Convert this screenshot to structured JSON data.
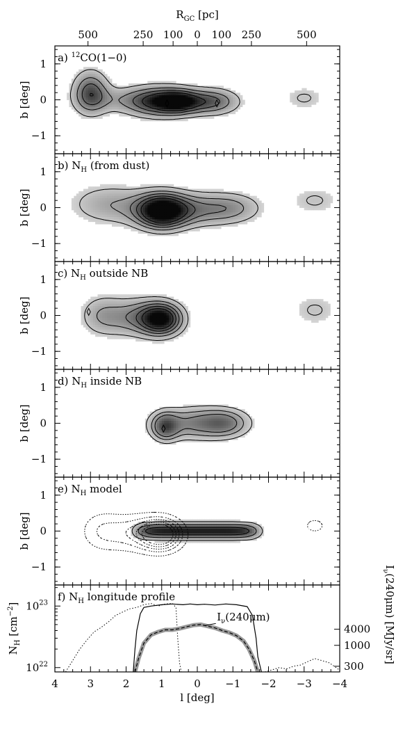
{
  "chart_data": {
    "type": "heatmap",
    "top_axis": {
      "label_main": "R",
      "label_sub": "GC",
      "label_unit": " [pc]",
      "ticks": [
        {
          "l": 3.07,
          "label": "500"
        },
        {
          "l": 1.52,
          "label": "250"
        },
        {
          "l": 0.68,
          "label": "100"
        },
        {
          "l": 0.0,
          "label": "0"
        },
        {
          "l": -0.68,
          "label": "100"
        },
        {
          "l": -1.52,
          "label": "250"
        },
        {
          "l": -3.07,
          "label": "500"
        }
      ]
    },
    "x_axis": {
      "label": "l [deg]",
      "range": [
        4,
        -4
      ],
      "ticks": [
        {
          "v": 4,
          "label": "4"
        },
        {
          "v": 3,
          "label": "3"
        },
        {
          "v": 2,
          "label": "2"
        },
        {
          "v": 1,
          "label": "1"
        },
        {
          "v": 0,
          "label": "0"
        },
        {
          "v": -1,
          "label": "−1"
        },
        {
          "v": -2,
          "label": "−2"
        },
        {
          "v": -3,
          "label": "−3"
        },
        {
          "v": -4,
          "label": "−4"
        }
      ]
    },
    "y_axis_label": "b [deg]",
    "b_range": [
      -1.5,
      1.5
    ],
    "b_ticks": [
      {
        "v": 1,
        "label": "1"
      },
      {
        "v": 0,
        "label": "0"
      },
      {
        "v": -1,
        "label": "−1"
      }
    ],
    "panels": [
      {
        "letter": "a)",
        "title_pre": "",
        "title_sup": "12",
        "title_main": "CO(1−0)",
        "title_sub": "",
        "title_post": "",
        "blobs": [
          {
            "l": 3.0,
            "b": 0.2,
            "wl": 0.45,
            "wb": 0.55,
            "amp": 0.7
          },
          {
            "l": 1.1,
            "b": -0.05,
            "wl": 0.8,
            "wb": 0.38,
            "amp": 0.85
          },
          {
            "l": 0.5,
            "b": -0.05,
            "wl": 0.55,
            "wb": 0.3,
            "amp": 0.8
          },
          {
            "l": -0.4,
            "b": -0.05,
            "wl": 0.7,
            "wb": 0.33,
            "amp": 0.65
          },
          {
            "l": 2.2,
            "b": 0.0,
            "wl": 1.0,
            "wb": 0.35,
            "amp": 0.25
          },
          {
            "l": -3.0,
            "b": 0.05,
            "wl": 0.6,
            "wb": 0.35,
            "amp": 0.2
          }
        ],
        "levels": [
          0.18,
          0.4,
          0.6,
          0.8
        ],
        "dotted": false,
        "peaks": [
          {
            "l": 0.85,
            "b": -0.1
          },
          {
            "l": -0.55,
            "b": -0.1
          }
        ]
      },
      {
        "letter": "b)",
        "title_pre": "",
        "title_sup": "",
        "title_main": "N",
        "title_sub": "H",
        "title_post": " (from dust)",
        "blobs": [
          {
            "l": 1.0,
            "b": -0.1,
            "wl": 0.65,
            "wb": 0.45,
            "amp": 1.0
          },
          {
            "l": 0.3,
            "b": -0.05,
            "wl": 1.4,
            "wb": 0.45,
            "amp": 0.5
          },
          {
            "l": 2.5,
            "b": 0.1,
            "wl": 1.1,
            "wb": 0.55,
            "amp": 0.3
          },
          {
            "l": -1.0,
            "b": 0.0,
            "wl": 0.8,
            "wb": 0.4,
            "amp": 0.25
          },
          {
            "l": -3.3,
            "b": 0.2,
            "wl": 0.7,
            "wb": 0.4,
            "amp": 0.2
          }
        ],
        "levels": [
          0.18,
          0.35,
          0.5,
          0.65,
          0.8
        ],
        "dotted": false,
        "peaks": []
      },
      {
        "letter": "c)",
        "title_pre": "",
        "title_sup": "",
        "title_main": "N",
        "title_sub": "H",
        "title_post": " outside NB",
        "blobs": [
          {
            "l": 1.0,
            "b": -0.1,
            "wl": 0.55,
            "wb": 0.42,
            "amp": 1.0
          },
          {
            "l": 1.7,
            "b": -0.05,
            "wl": 0.8,
            "wb": 0.5,
            "amp": 0.45
          },
          {
            "l": 2.7,
            "b": 0.0,
            "wl": 0.6,
            "wb": 0.55,
            "amp": 0.3
          },
          {
            "l": -3.3,
            "b": 0.15,
            "wl": 0.65,
            "wb": 0.45,
            "amp": 0.2
          }
        ],
        "levels": [
          0.18,
          0.35,
          0.5,
          0.65,
          0.8
        ],
        "dotted": false,
        "peaks": [
          {
            "l": 3.05,
            "b": 0.1
          }
        ]
      },
      {
        "letter": "d)",
        "title_pre": "",
        "title_sup": "",
        "title_main": "N",
        "title_sub": "H",
        "title_post": " inside NB",
        "blobs": [
          {
            "l": 0.9,
            "b": -0.1,
            "wl": 0.35,
            "wb": 0.35,
            "amp": 0.6
          },
          {
            "l": 0.0,
            "b": 0.0,
            "wl": 1.1,
            "wb": 0.42,
            "amp": 0.5
          },
          {
            "l": -0.8,
            "b": 0.0,
            "wl": 0.6,
            "wb": 0.35,
            "amp": 0.35
          }
        ],
        "levels": [
          0.15,
          0.3,
          0.45
        ],
        "dotted": false,
        "peaks": [
          {
            "l": 0.95,
            "b": -0.15
          }
        ]
      },
      {
        "letter": "e)",
        "title_pre": "",
        "title_sup": "",
        "title_main": "N",
        "title_sub": "H",
        "title_post": " model",
        "blobs": [
          {
            "l": 0.0,
            "b": 0.0,
            "wl": 1.75,
            "wb": 0.22,
            "amp": 1.0,
            "flat": true
          }
        ],
        "levels": [
          0.18,
          0.45,
          0.75
        ],
        "dotted": true,
        "dotted_blobs": [
          {
            "l": 1.0,
            "b": -0.1,
            "wl": 0.55,
            "wb": 0.42,
            "amp": 1.0
          },
          {
            "l": 1.7,
            "b": -0.05,
            "wl": 0.8,
            "wb": 0.5,
            "amp": 0.45
          },
          {
            "l": 2.7,
            "b": 0.0,
            "wl": 0.6,
            "wb": 0.55,
            "amp": 0.3
          },
          {
            "l": -3.3,
            "b": 0.15,
            "wl": 0.65,
            "wb": 0.45,
            "amp": 0.2
          }
        ],
        "dotted_levels": [
          0.18,
          0.35,
          0.5,
          0.65,
          0.8
        ],
        "peaks": []
      }
    ],
    "profile": {
      "letter": "f)",
      "title_main": "N",
      "title_sub": "H",
      "title_post": " longitude profile",
      "ylabel_main": "N",
      "ylabel_sub": "H",
      "ylabel_unit": " [cm",
      "ylabel_exp": "−2",
      "ylabel_close": "]",
      "yscale": "log",
      "yrange": [
        8.5e+21,
        2.2e+23
      ],
      "left_ticks": [
        {
          "v": 1e+22,
          "base": "10",
          "exp": "22"
        },
        {
          "v": 1e+23,
          "base": "10",
          "exp": "23"
        }
      ],
      "right_label_main": "I",
      "right_label_sub": "ν",
      "right_label_unit": "(240μm) [MJy/sr]",
      "right_ticks": [
        {
          "v": 4000,
          "pos": 4.2e+22,
          "label": "4000"
        },
        {
          "v": 1000,
          "pos": 2.3e+22,
          "label": "1000"
        },
        {
          "v": 300,
          "pos": 1.05e+22,
          "label": "300"
        }
      ],
      "annotation_main": "I",
      "annotation_sub": "ν",
      "annotation_post": "(240μm)",
      "model_profile": {
        "l": [
          1.8,
          1.75,
          1.7,
          1.6,
          1.5,
          1.3,
          1.0,
          0.7,
          0.4,
          0.2,
          0.0,
          -0.2,
          -0.5,
          -0.8,
          -1.1,
          -1.4,
          -1.55,
          -1.65,
          -1.7,
          -1.8
        ],
        "nh": [
          8.5e+21,
          2e+22,
          4e+22,
          7.5e+22,
          9.5e+22,
          1e+23,
          1.05e+23,
          1.08e+23,
          1.05e+23,
          1.08e+23,
          1.05e+23,
          1.07e+23,
          1.04e+23,
          1.08e+23,
          1.05e+23,
          9.8e+22,
          7e+22,
          3e+22,
          1.5e+22,
          8.5e+21
        ]
      },
      "dust_profile": {
        "l": [
          3.7,
          3.5,
          3.3,
          3.1,
          2.9,
          2.7,
          2.5,
          2.3,
          2.1,
          1.9,
          1.7,
          1.5,
          1.3,
          1.1,
          0.9,
          0.7,
          0.6,
          0.55,
          0.5,
          0.45,
          0.3,
          0.2
        ],
        "nh": [
          8.5e+21,
          1.3e+22,
          2e+22,
          2.8e+22,
          3.8e+22,
          4.5e+22,
          5.5e+22,
          7e+22,
          8e+22,
          9e+22,
          9.5e+22,
          1.05e+23,
          1.1e+23,
          1e+23,
          1.08e+23,
          1.1e+23,
          9.5e+22,
          3e+22,
          1.2e+22,
          8.5e+21,
          8.5e+21,
          8.5e+21
        ]
      },
      "dust_profile_neg": {
        "l": [
          -1.9,
          -2.1,
          -2.3,
          -2.5,
          -2.7,
          -2.9,
          -3.1,
          -3.3,
          -3.5,
          -3.7,
          -3.9,
          -4.0
        ],
        "nh": [
          8.5e+21,
          9.2e+21,
          1e+22,
          9.5e+21,
          1.05e+22,
          1.1e+22,
          1.25e+22,
          1.4e+22,
          1.3e+22,
          1.2e+22,
          1e+22,
          9e+21
        ]
      },
      "i240_profile": {
        "l": [
          1.75,
          1.65,
          1.5,
          1.3,
          1.1,
          0.9,
          0.7,
          0.5,
          0.3,
          0.1,
          -0.1,
          -0.3,
          -0.5,
          -0.7,
          -0.9,
          -1.1,
          -1.3,
          -1.45,
          -1.6,
          -1.7
        ],
        "nh": [
          8.5e+21,
          1.4e+22,
          2.5e+22,
          3.4e+22,
          3.8e+22,
          4.1e+22,
          4.1e+22,
          4.3e+22,
          4.6e+22,
          4.9e+22,
          5e+22,
          4.7e+22,
          4.4e+22,
          4e+22,
          3.7e+22,
          3.3e+22,
          2.7e+22,
          2e+22,
          1.3e+22,
          8.5e+21
        ]
      }
    }
  }
}
